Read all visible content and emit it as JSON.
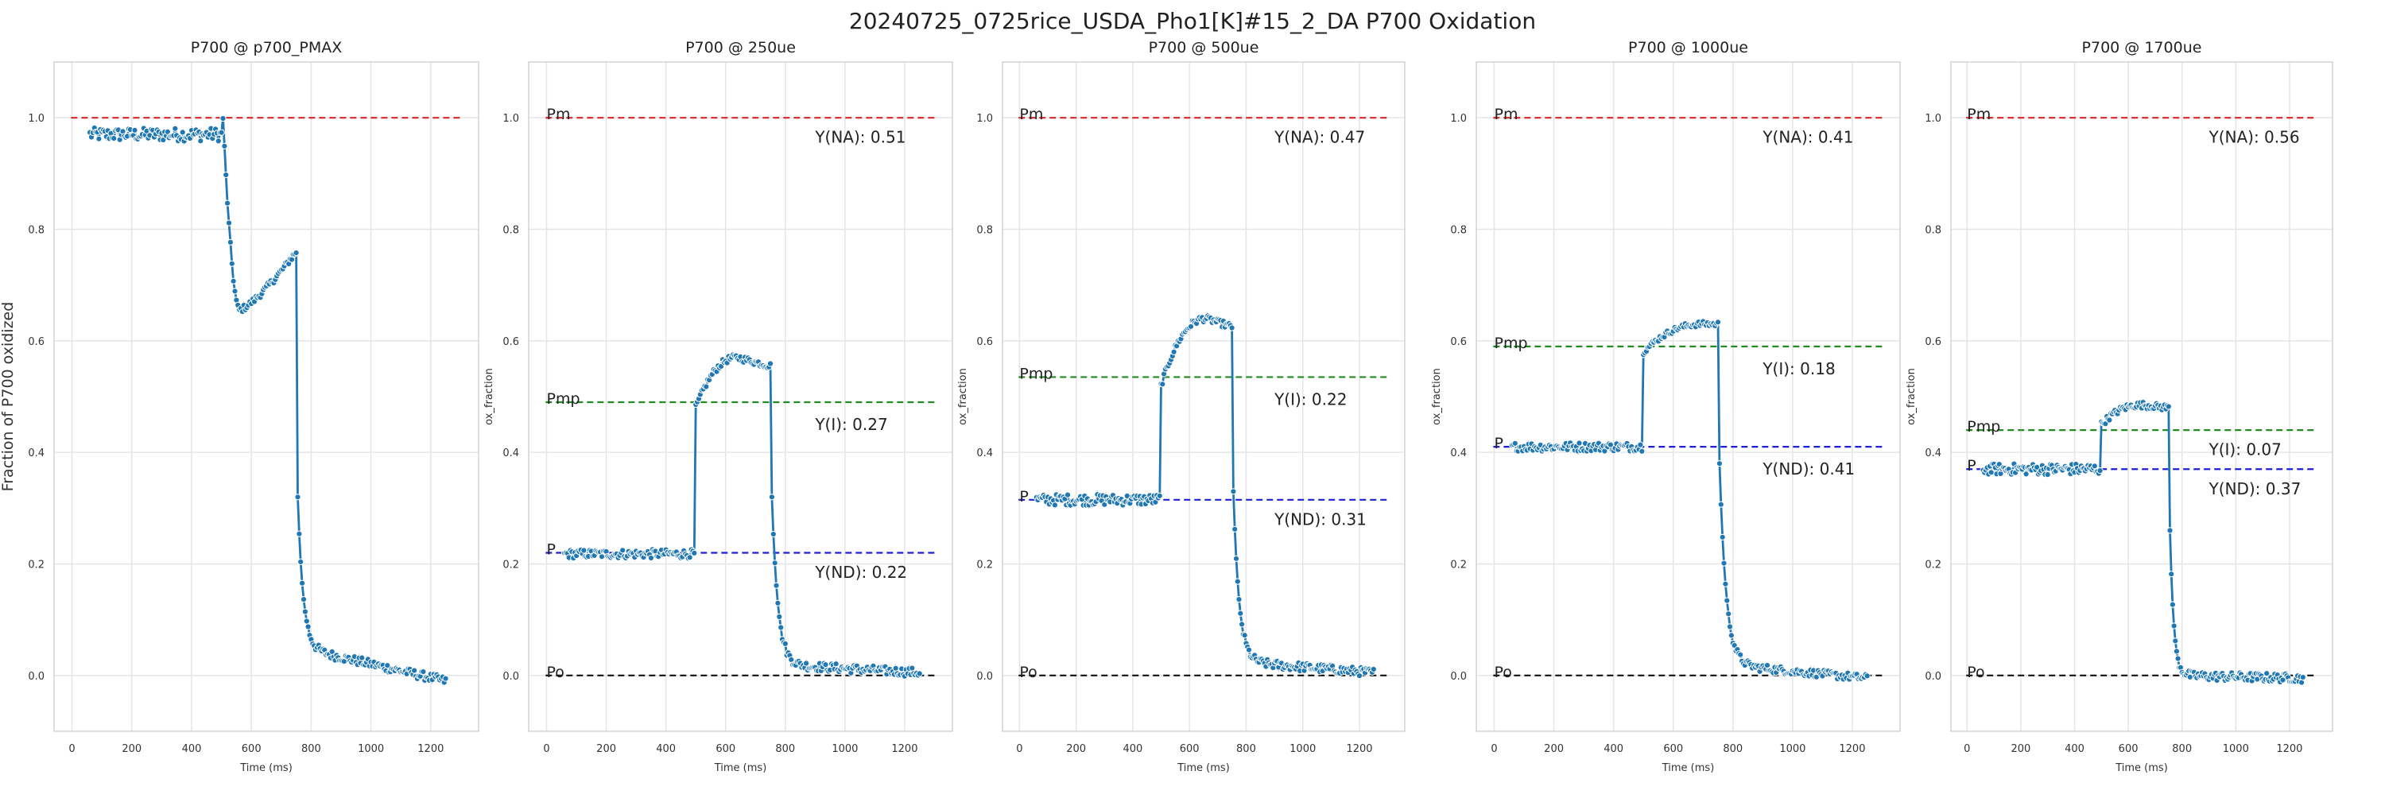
{
  "figure": {
    "title": "20240725_0725rice_USDA_Pho1[K]#15_2_DA P700 Oxidation"
  },
  "style": {
    "series_color": "#1f77b4",
    "marker_edge": "#ffffff",
    "grid_color": "#e5e5e5",
    "pm_color": "#d62728",
    "pmp_color": "#228b22",
    "p_color": "#1f1fd6",
    "po_color": "#111111"
  },
  "chart_data": [
    {
      "type": "line",
      "title": "P700 @ p700_PMAX",
      "xlabel": "Time (ms)",
      "ylabel": "Fraction of P700 oxidized",
      "xlim": [
        -60,
        1360
      ],
      "ylim": [
        -0.1,
        1.1
      ],
      "xticks": [
        0,
        200,
        400,
        600,
        800,
        1000,
        1200
      ],
      "yticks": [
        0.0,
        0.2,
        0.4,
        0.6,
        0.8,
        1.0
      ],
      "grid": true,
      "segments": [
        {
          "t0": 60,
          "t1": 500,
          "dt": 5,
          "kind": "flat",
          "v": 0.97,
          "noise": 0.012
        },
        {
          "t0": 505,
          "t1": 750,
          "dt": 5,
          "kind": "dipRise",
          "v0": 1.0,
          "vmin": 0.655,
          "tmin": 560,
          "v1": 0.76,
          "noise": 0.006
        },
        {
          "t0": 755,
          "t1": 1250,
          "dt": 5,
          "kind": "decay",
          "v0": 0.32,
          "vinf": 0.05,
          "tau": 18,
          "vend": -0.01,
          "noise": 0.008
        }
      ],
      "hlines": [
        {
          "label": "",
          "y": 1.0,
          "color": "#d62728"
        }
      ],
      "annotations": []
    },
    {
      "type": "line",
      "title": "P700 @ 250ue",
      "xlabel": "Time (ms)",
      "ylabel": "ox_fraction",
      "xlim": [
        -60,
        1360
      ],
      "ylim": [
        -0.1,
        1.1
      ],
      "xticks": [
        0,
        200,
        400,
        600,
        800,
        1000,
        1200
      ],
      "yticks": [
        0.0,
        0.2,
        0.4,
        0.6,
        0.8,
        1.0
      ],
      "grid": true,
      "segments": [
        {
          "t0": 60,
          "t1": 495,
          "dt": 5,
          "kind": "flat",
          "v": 0.218,
          "noise": 0.008
        },
        {
          "t0": 500,
          "t1": 750,
          "dt": 5,
          "kind": "riseHump",
          "v0": 0.48,
          "vpeak": 0.57,
          "tpeak": 640,
          "v1": 0.555,
          "noise": 0.006
        },
        {
          "t0": 755,
          "t1": 1250,
          "dt": 5,
          "kind": "decay",
          "v0": 0.32,
          "vinf": 0.02,
          "tau": 20,
          "vend": 0.005,
          "noise": 0.008
        }
      ],
      "hlines": [
        {
          "label": "Pm",
          "y": 1.0,
          "color": "#d62728"
        },
        {
          "label": "Pmp",
          "y": 0.49,
          "color": "#228b22"
        },
        {
          "label": "P",
          "y": 0.22,
          "color": "#1f1fd6"
        },
        {
          "label": "Po",
          "y": 0.0,
          "color": "#111111"
        }
      ],
      "annotations": [
        {
          "text": "Y(NA): 0.51",
          "x": 900,
          "y": 0.955
        },
        {
          "text": "Y(I): 0.27",
          "x": 900,
          "y": 0.44
        },
        {
          "text": "Y(ND): 0.22",
          "x": 900,
          "y": 0.175
        }
      ]
    },
    {
      "type": "line",
      "title": "P700 @ 500ue",
      "xlabel": "Time (ms)",
      "ylabel": "ox_fraction",
      "xlim": [
        -60,
        1360
      ],
      "ylim": [
        -0.1,
        1.1
      ],
      "xticks": [
        0,
        200,
        400,
        600,
        800,
        1000,
        1200
      ],
      "yticks": [
        0.0,
        0.2,
        0.4,
        0.6,
        0.8,
        1.0
      ],
      "grid": true,
      "segments": [
        {
          "t0": 60,
          "t1": 495,
          "dt": 5,
          "kind": "flat",
          "v": 0.315,
          "noise": 0.01
        },
        {
          "t0": 500,
          "t1": 750,
          "dt": 5,
          "kind": "riseHump",
          "v0": 0.52,
          "vpeak": 0.64,
          "tpeak": 660,
          "v1": 0.625,
          "noise": 0.006
        },
        {
          "t0": 755,
          "t1": 1250,
          "dt": 5,
          "kind": "decay",
          "v0": 0.33,
          "vinf": 0.025,
          "tau": 20,
          "vend": 0.005,
          "noise": 0.008
        }
      ],
      "hlines": [
        {
          "label": "Pm",
          "y": 1.0,
          "color": "#d62728"
        },
        {
          "label": "Pmp",
          "y": 0.535,
          "color": "#228b22"
        },
        {
          "label": "P",
          "y": 0.315,
          "color": "#1f1fd6"
        },
        {
          "label": "Po",
          "y": 0.0,
          "color": "#111111"
        }
      ],
      "annotations": [
        {
          "text": "Y(NA): 0.47",
          "x": 900,
          "y": 0.955
        },
        {
          "text": "Y(I): 0.22",
          "x": 900,
          "y": 0.485
        },
        {
          "text": "Y(ND): 0.31",
          "x": 900,
          "y": 0.27
        }
      ]
    },
    {
      "type": "line",
      "title": "P700 @ 1000ue",
      "xlabel": "Time (ms)",
      "ylabel": "ox_fraction",
      "xlim": [
        -60,
        1360
      ],
      "ylim": [
        -0.1,
        1.1
      ],
      "xticks": [
        0,
        200,
        400,
        600,
        800,
        1000,
        1200
      ],
      "yticks": [
        0.0,
        0.2,
        0.4,
        0.6,
        0.8,
        1.0
      ],
      "grid": true,
      "segments": [
        {
          "t0": 60,
          "t1": 495,
          "dt": 5,
          "kind": "flat",
          "v": 0.41,
          "noise": 0.008
        },
        {
          "t0": 500,
          "t1": 750,
          "dt": 5,
          "kind": "riseHump",
          "v0": 0.58,
          "vpeak": 0.63,
          "tpeak": 700,
          "v1": 0.63,
          "noise": 0.005
        },
        {
          "t0": 755,
          "t1": 1250,
          "dt": 5,
          "kind": "decay",
          "v0": 0.38,
          "vinf": 0.02,
          "tau": 22,
          "vend": -0.005,
          "noise": 0.007
        }
      ],
      "hlines": [
        {
          "label": "Pm",
          "y": 1.0,
          "color": "#d62728"
        },
        {
          "label": "Pmp",
          "y": 0.59,
          "color": "#228b22"
        },
        {
          "label": "P",
          "y": 0.41,
          "color": "#1f1fd6"
        },
        {
          "label": "Po",
          "y": 0.0,
          "color": "#111111"
        }
      ],
      "annotations": [
        {
          "text": "Y(NA): 0.41",
          "x": 900,
          "y": 0.955
        },
        {
          "text": "Y(I): 0.18",
          "x": 900,
          "y": 0.54
        },
        {
          "text": "Y(ND): 0.41",
          "x": 900,
          "y": 0.36
        }
      ]
    },
    {
      "type": "line",
      "title": "P700 @ 1700ue",
      "xlabel": "Time (ms)",
      "ylabel": "ox_fraction",
      "xlim": [
        -60,
        1360
      ],
      "ylim": [
        -0.1,
        1.1
      ],
      "xticks": [
        0,
        200,
        400,
        600,
        800,
        1000,
        1200
      ],
      "yticks": [
        0.0,
        0.2,
        0.4,
        0.6,
        0.8,
        1.0
      ],
      "grid": true,
      "segments": [
        {
          "t0": 60,
          "t1": 495,
          "dt": 5,
          "kind": "flat",
          "v": 0.37,
          "noise": 0.01
        },
        {
          "t0": 500,
          "t1": 750,
          "dt": 5,
          "kind": "riseHump",
          "v0": 0.45,
          "vpeak": 0.485,
          "tpeak": 650,
          "v1": 0.48,
          "noise": 0.006
        },
        {
          "t0": 755,
          "t1": 1250,
          "dt": 5,
          "kind": "decay",
          "v0": 0.26,
          "vinf": 0.0,
          "tau": 14,
          "vend": -0.005,
          "noise": 0.008
        }
      ],
      "hlines": [
        {
          "label": "Pm",
          "y": 1.0,
          "color": "#d62728"
        },
        {
          "label": "Pmp",
          "y": 0.44,
          "color": "#228b22"
        },
        {
          "label": "P",
          "y": 0.37,
          "color": "#1f1fd6"
        },
        {
          "label": "Po",
          "y": 0.0,
          "color": "#111111"
        }
      ],
      "annotations": [
        {
          "text": "Y(NA): 0.56",
          "x": 900,
          "y": 0.955
        },
        {
          "text": "Y(I): 0.07",
          "x": 900,
          "y": 0.395
        },
        {
          "text": "Y(ND): 0.37",
          "x": 900,
          "y": 0.325
        }
      ]
    }
  ]
}
